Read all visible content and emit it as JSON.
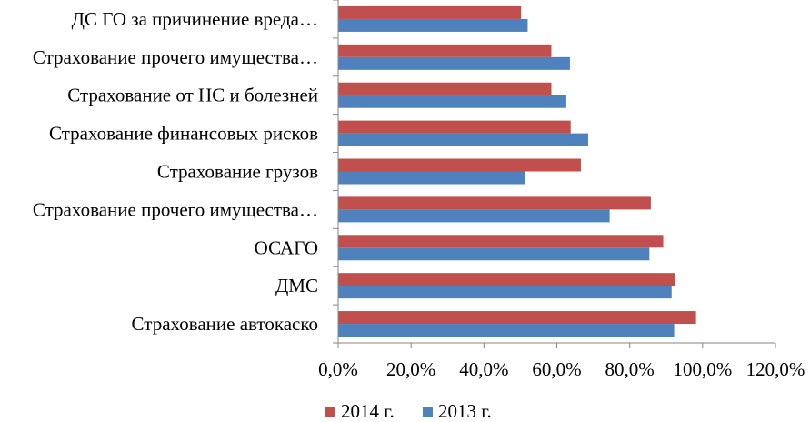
{
  "chart_data": {
    "type": "bar",
    "orientation": "horizontal",
    "categories": [
      "Страхование автокаско",
      "ДМС",
      "ОСАГО",
      "Страхование прочего имущества…",
      "Страхование грузов",
      "Страхование финансовых рисков",
      "Страхование от НС и болезней",
      "Страхование прочего имущества…",
      "ДС ГО за причинение вреда…"
    ],
    "series": [
      {
        "name": "2014 г.",
        "color": "#C0504D",
        "values": [
          98.2,
          92.5,
          89.2,
          85.8,
          66.6,
          63.8,
          58.5,
          58.5,
          50.2
        ]
      },
      {
        "name": "2013 г.",
        "color": "#4F81BD",
        "values": [
          92.2,
          91.5,
          85.4,
          74.5,
          51.3,
          68.6,
          62.6,
          63.6,
          52.0
        ]
      }
    ],
    "xlim": [
      0,
      120
    ],
    "xticks": [
      "0,0%",
      "20,0%",
      "40,0%",
      "60,0%",
      "80,0%",
      "100,0%",
      "120,0%"
    ],
    "grid": false,
    "legend_position": "bottom"
  }
}
